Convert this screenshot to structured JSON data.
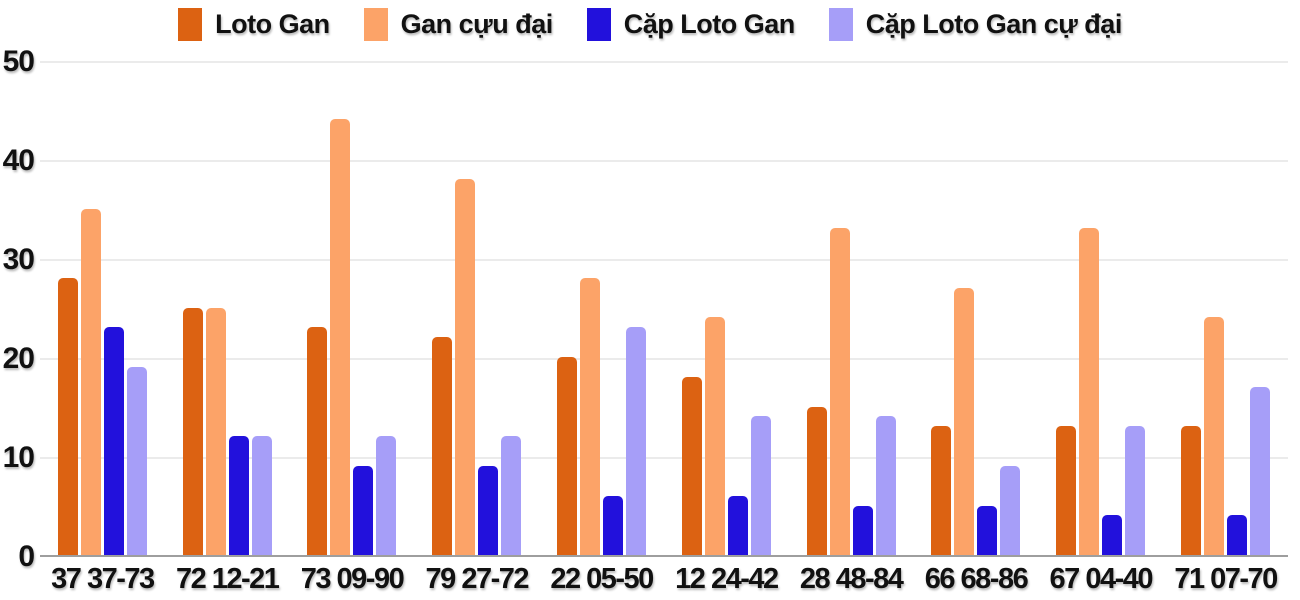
{
  "chart_data": {
    "type": "bar",
    "title": "",
    "xlabel": "",
    "ylabel": "",
    "categories": [
      "37 37-73",
      "72 12-21",
      "73 09-90",
      "79 27-72",
      "22 05-50",
      "12 24-42",
      "28 48-84",
      "66 68-86",
      "67 04-40",
      "71 07-70"
    ],
    "series": [
      {
        "name": "Loto Gan",
        "color": "#DC6212",
        "values": [
          28,
          25,
          23,
          22,
          20,
          18,
          15,
          13,
          13,
          13
        ]
      },
      {
        "name": "Gan cựu đại",
        "color": "#FCA368",
        "values": [
          35,
          25,
          44,
          38,
          28,
          24,
          33,
          27,
          33,
          24
        ]
      },
      {
        "name": "Cặp Loto Gan",
        "color": "#2211DC",
        "values": [
          23,
          12,
          9,
          9,
          6,
          6,
          5,
          5,
          4,
          4
        ]
      },
      {
        "name": "Cặp Loto Gan cự đại",
        "color": "#A69EF8",
        "values": [
          19,
          12,
          12,
          12,
          23,
          14,
          14,
          9,
          13,
          17
        ]
      }
    ],
    "ylim": [
      0,
      50
    ],
    "yticks": [
      0,
      10,
      20,
      30,
      40,
      50
    ],
    "grid": true,
    "legend_position": "top"
  },
  "colors": {
    "grid": "#EBEBEB",
    "baseline": "#9E9E9E",
    "axis_text": "#111111"
  }
}
